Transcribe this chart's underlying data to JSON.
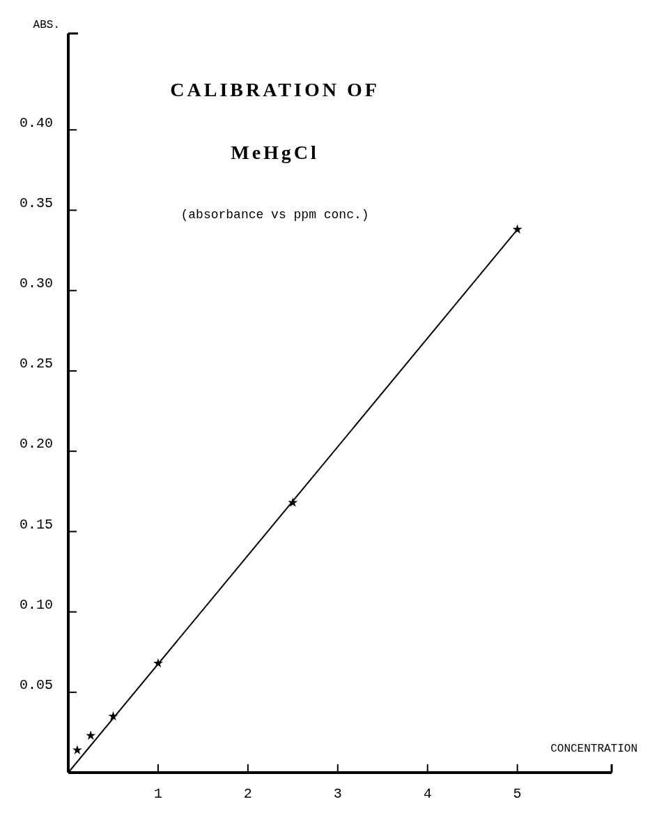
{
  "chart_data": {
    "type": "scatter",
    "title": "CALIBRATION OF",
    "subtitle": "MeHgCl",
    "annotations": [
      "(absorbance vs ppm conc.)"
    ],
    "xlabel": "CONCENTRATION",
    "ylabel": "ABS.",
    "xlim": [
      0,
      6.05
    ],
    "ylim": [
      0,
      0.46
    ],
    "xticks": [
      1,
      2,
      3,
      4,
      5
    ],
    "yticks": [
      {
        "value": 0.05,
        "label": "0.05"
      },
      {
        "value": 0.1,
        "label": "0.10"
      },
      {
        "value": 0.15,
        "label": "0.15"
      },
      {
        "value": 0.2,
        "label": "0.20"
      },
      {
        "value": 0.25,
        "label": "0.25"
      },
      {
        "value": 0.3,
        "label": "0.30"
      },
      {
        "value": 0.35,
        "label": "0.35"
      },
      {
        "value": 0.4,
        "label": "0.40"
      }
    ],
    "grid": false,
    "series": [
      {
        "type": "line",
        "color": "#000000",
        "x": [
          0,
          5
        ],
        "values": [
          0,
          0.338
        ]
      },
      {
        "marker": "star",
        "color": "#000000",
        "x": [
          0.1,
          0.25,
          0.5,
          1,
          2.5,
          5
        ],
        "values": [
          0.014,
          0.023,
          0.035,
          0.068,
          0.168,
          0.338
        ]
      }
    ]
  }
}
